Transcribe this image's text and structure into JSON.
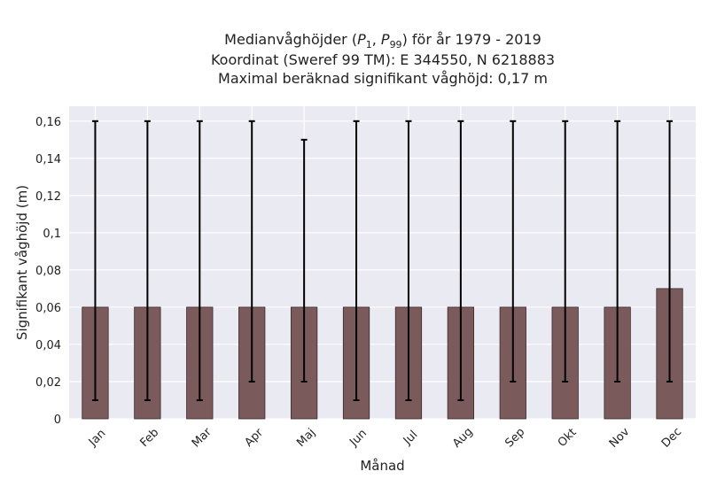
{
  "chart_data": {
    "type": "bar",
    "title_lines": [
      "Medianvåghöjder (P1, P99) för år 1979 - 2019",
      "Koordinat (Sweref 99 TM): E 344550, N 6218883",
      "Maximal beräknad signifikant våghöjd: 0,17 m"
    ],
    "title_parts": {
      "prefix": "Medianvåghöjder (",
      "p1_base": "P",
      "p1_sub": "1",
      "p99_base": "P",
      "p99_sub": "99",
      "suffix": ") för år 1979 - 2019"
    },
    "xlabel": "Månad",
    "ylabel": "Signifikant våghöjd (m)",
    "categories": [
      "Jan",
      "Feb",
      "Mar",
      "Apr",
      "Maj",
      "Jun",
      "Jul",
      "Aug",
      "Sep",
      "Okt",
      "Nov",
      "Dec"
    ],
    "values": [
      0.06,
      0.06,
      0.06,
      0.06,
      0.06,
      0.06,
      0.06,
      0.06,
      0.06,
      0.06,
      0.06,
      0.07
    ],
    "p1": [
      0.01,
      0.01,
      0.01,
      0.02,
      0.02,
      0.01,
      0.01,
      0.01,
      0.02,
      0.02,
      0.02,
      0.02
    ],
    "p99": [
      0.16,
      0.16,
      0.16,
      0.16,
      0.15,
      0.16,
      0.16,
      0.16,
      0.16,
      0.16,
      0.16,
      0.16
    ],
    "ylim": [
      0,
      0.168
    ],
    "yticks": [
      0,
      0.02,
      0.04,
      0.06,
      0.08,
      0.1,
      0.12,
      0.14,
      0.16
    ],
    "ytick_labels": [
      "0",
      "0,02",
      "0,04",
      "0,06",
      "0,08",
      "0,1",
      "0,12",
      "0,14",
      "0,16"
    ],
    "grid": true,
    "colors": {
      "bar": "#7b5a5c",
      "bar_edge": "#3a2a2b",
      "errorbar": "#000000",
      "plot_bg": "#eaeaf2",
      "grid": "#ffffff"
    }
  }
}
